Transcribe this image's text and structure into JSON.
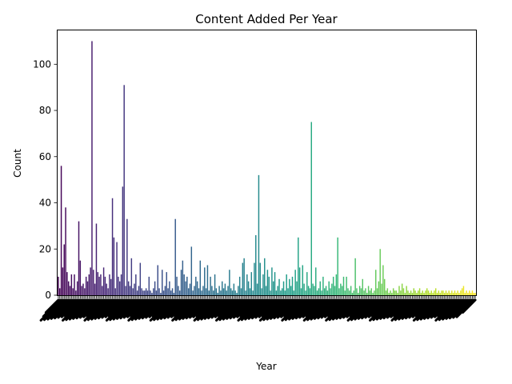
{
  "chart_data": {
    "type": "bar",
    "title": "Content Added Per Year",
    "xlabel": "Year",
    "ylabel": "Count",
    "ylim": [
      0,
      115
    ],
    "yticks": [
      0,
      20,
      40,
      60,
      80,
      100
    ],
    "grid": false,
    "legend": "none",
    "colormap": "viridis",
    "x_tick_labels_legible": false,
    "values": [
      8,
      3,
      56,
      12,
      22,
      38,
      10,
      6,
      4,
      9,
      3,
      9,
      2,
      6,
      32,
      15,
      4,
      5,
      3,
      8,
      6,
      9,
      12,
      110,
      11,
      5,
      31,
      10,
      8,
      9,
      4,
      12,
      8,
      5,
      3,
      9,
      7,
      42,
      25,
      3,
      23,
      8,
      6,
      9,
      47,
      91,
      4,
      33,
      6,
      4,
      16,
      3,
      5,
      9,
      2,
      4,
      14,
      3,
      2,
      2,
      3,
      2,
      8,
      2,
      1,
      3,
      6,
      2,
      13,
      3,
      1,
      11,
      2,
      4,
      10,
      3,
      6,
      2,
      3,
      1,
      33,
      8,
      4,
      2,
      11,
      15,
      9,
      6,
      8,
      3,
      5,
      21,
      2,
      4,
      8,
      6,
      3,
      15,
      2,
      4,
      12,
      3,
      13,
      2,
      8,
      4,
      2,
      9,
      3,
      1,
      4,
      2,
      6,
      3,
      5,
      2,
      4,
      11,
      3,
      2,
      5,
      2,
      1,
      4,
      8,
      3,
      14,
      16,
      2,
      9,
      6,
      3,
      10,
      2,
      14,
      26,
      5,
      52,
      14,
      3,
      9,
      16,
      4,
      11,
      8,
      2,
      12,
      6,
      10,
      2,
      4,
      7,
      2,
      3,
      6,
      2,
      9,
      3,
      7,
      4,
      8,
      2,
      11,
      6,
      25,
      12,
      3,
      13,
      5,
      2,
      10,
      4,
      3,
      75,
      5,
      4,
      12,
      2,
      3,
      6,
      2,
      8,
      3,
      4,
      2,
      6,
      3,
      5,
      8,
      4,
      9,
      25,
      3,
      5,
      4,
      8,
      2,
      8,
      3,
      2,
      4,
      1,
      2,
      16,
      3,
      1,
      4,
      3,
      7,
      2,
      3,
      1,
      4,
      2,
      3,
      1,
      2,
      11,
      3,
      6,
      20,
      5,
      13,
      7,
      2,
      3,
      1,
      2,
      1,
      3,
      2,
      2,
      1,
      4,
      2,
      5,
      3,
      1,
      4,
      2,
      1,
      2,
      1,
      3,
      2,
      1,
      2,
      3,
      1,
      2,
      1,
      2,
      3,
      2,
      1,
      2,
      1,
      2,
      3,
      1,
      2,
      1,
      2,
      2,
      1,
      2,
      1,
      2,
      1,
      2,
      1,
      2,
      1,
      2,
      1,
      2,
      3,
      4,
      1,
      2,
      1,
      2,
      1,
      2,
      1,
      1
    ]
  }
}
